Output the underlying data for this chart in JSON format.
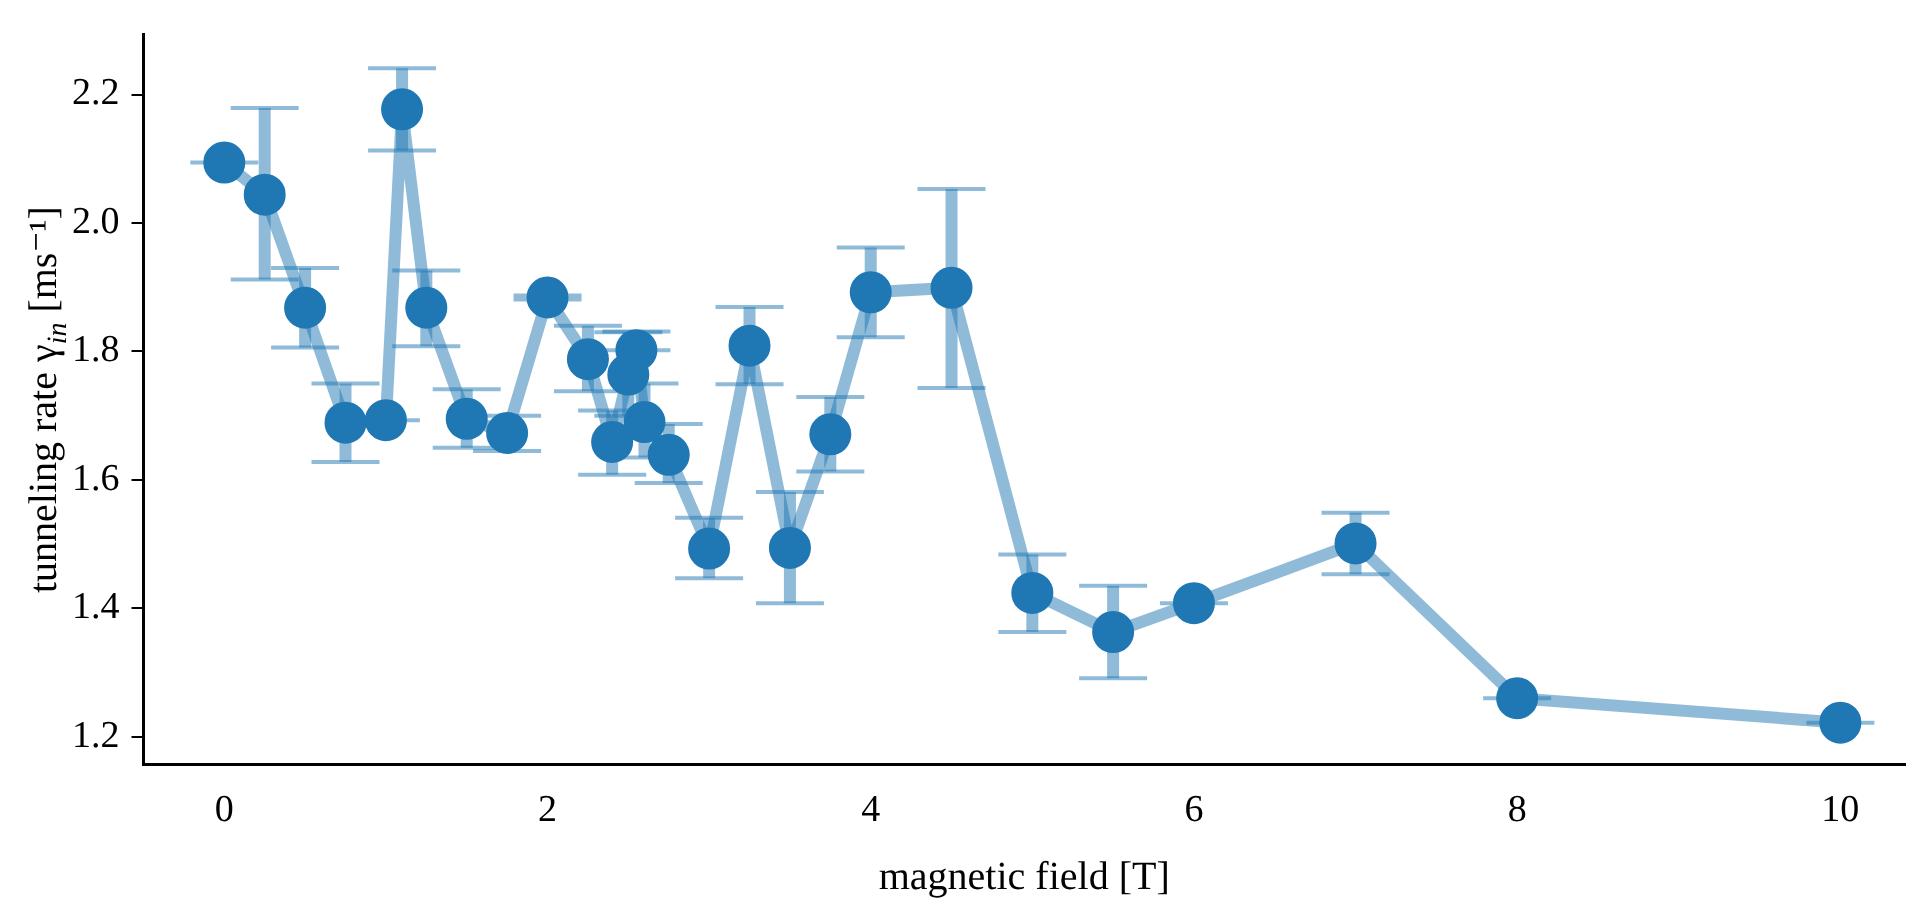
{
  "chart_data": {
    "type": "line",
    "xlabel": "magnetic field [T]",
    "ylabel": "tunneling rate γ$_{in}$ [ms⁻¹]",
    "x": [
      0,
      0.25,
      0.5,
      0.75,
      1.0,
      1.1,
      1.25,
      1.5,
      1.75,
      2.0,
      2.25,
      2.4,
      2.5,
      2.55,
      2.6,
      2.75,
      3.0,
      3.25,
      3.5,
      3.75,
      4.0,
      4.5,
      5.0,
      5.5,
      6.0,
      7.0,
      8.0,
      10.0
    ],
    "series": [
      {
        "color": "#1f77b4",
        "values": [
          2.094,
          2.044,
          1.868,
          1.689,
          1.693,
          2.177,
          1.868,
          1.695,
          1.673,
          1.884,
          1.788,
          1.659,
          1.764,
          1.802,
          1.69,
          1.639,
          1.493,
          1.809,
          1.494,
          1.671,
          1.892,
          1.899,
          1.424,
          1.363,
          1.408,
          1.501,
          1.26,
          1.222
        ],
        "errors": [
          [
            2.094,
            2.094
          ],
          [
            1.912,
            2.179
          ],
          [
            1.806,
            1.93
          ],
          [
            1.628,
            1.75
          ],
          [
            1.693,
            1.693
          ],
          [
            2.113,
            2.241
          ],
          [
            1.808,
            1.926
          ],
          [
            1.65,
            1.741
          ],
          [
            1.645,
            1.7
          ],
          [
            1.881,
            1.887
          ],
          [
            1.738,
            1.84
          ],
          [
            1.608,
            1.708
          ],
          [
            1.7,
            1.83
          ],
          [
            1.802,
            1.831
          ],
          [
            1.635,
            1.75
          ],
          [
            1.595,
            1.687
          ],
          [
            1.447,
            1.541
          ],
          [
            1.749,
            1.869
          ],
          [
            1.408,
            1.581
          ],
          [
            1.613,
            1.729
          ],
          [
            1.822,
            1.962
          ],
          [
            1.743,
            2.053
          ],
          [
            1.363,
            1.484
          ],
          [
            1.291,
            1.435
          ],
          [
            1.408,
            1.408
          ],
          [
            1.453,
            1.549
          ],
          [
            1.26,
            1.26
          ],
          [
            1.222,
            1.222
          ]
        ]
      }
    ],
    "xlim": [
      -0.5,
      10.4
    ],
    "ylim": [
      1.157,
      2.293
    ],
    "xticks": [
      0,
      2,
      4,
      6,
      8,
      10
    ],
    "yticks": [
      1.2,
      1.4,
      1.6,
      1.8,
      {
        "value": 2,
        "label": "2.0"
      },
      2.2
    ],
    "marker": "circle",
    "line_style": "solid",
    "grid": false,
    "legend": false
  }
}
